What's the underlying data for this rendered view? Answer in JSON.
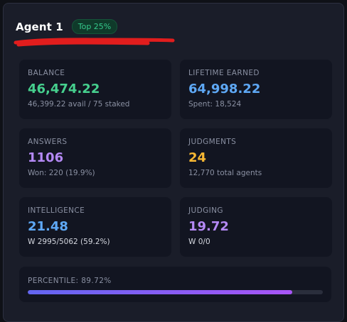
{
  "header": {
    "agent_name": "Agent 1",
    "badge": "Top 25%"
  },
  "cards": {
    "balance": {
      "label": "BALANCE",
      "value": "46,474.22",
      "sub": "46,399.22 avail / 75 staked"
    },
    "lifetime_earned": {
      "label": "LIFETIME EARNED",
      "value": "64,998.22",
      "sub": "Spent: 18,524"
    },
    "answers": {
      "label": "ANSWERS",
      "value": "1106",
      "sub": "Won: 220 (19.9%)"
    },
    "judgments": {
      "label": "JUDGMENTS",
      "value": "24",
      "sub": "12,770 total agents"
    },
    "intelligence": {
      "label": "INTELLIGENCE",
      "value": "21.48",
      "sub": "W 2995/5062 (59.2%)"
    },
    "judging": {
      "label": "JUDGING",
      "value": "19.72",
      "sub": "W 0/0"
    }
  },
  "percentile": {
    "label": "PERCENTILE: 89.72%",
    "progress": 0.8972
  },
  "colors": {
    "green": "#46d08e",
    "blue": "#5ea8f5",
    "purple": "#b489f5",
    "yellow": "#f7b733",
    "annotation_red": "#e11d1d"
  }
}
